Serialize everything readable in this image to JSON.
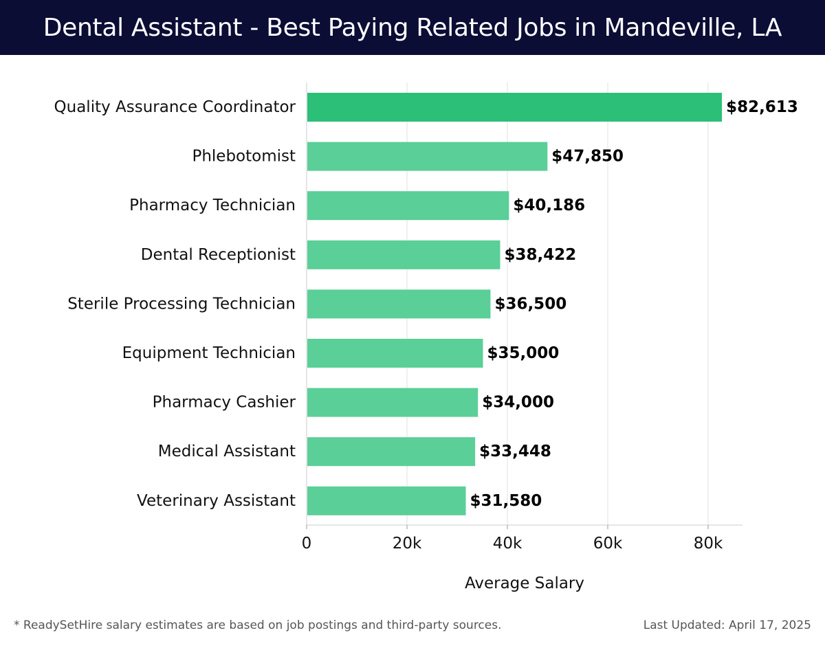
{
  "header": {
    "title": "Dental Assistant - Best Paying Related Jobs in Mandeville, LA"
  },
  "footer": {
    "note": "* ReadySetHire salary estimates are based on job postings and third-party sources.",
    "updated": "Last Updated: April 17, 2025"
  },
  "chart_data": {
    "type": "bar",
    "orientation": "horizontal",
    "title": "Dental Assistant - Best Paying Related Jobs in Mandeville, LA",
    "xlabel": "Average Salary",
    "ylabel": "",
    "xlim": [
      0,
      87000
    ],
    "xticks": [
      0,
      20000,
      40000,
      60000,
      80000
    ],
    "xtick_labels": [
      "0",
      "20k",
      "40k",
      "60k",
      "80k"
    ],
    "grid": true,
    "categories": [
      "Quality Assurance Coordinator",
      "Phlebotomist",
      "Pharmacy Technician",
      "Dental Receptionist",
      "Sterile Processing Technician",
      "Equipment Technician",
      "Pharmacy Cashier",
      "Medical Assistant",
      "Veterinary Assistant"
    ],
    "values": [
      82613,
      47850,
      40186,
      38422,
      36500,
      35000,
      34000,
      33448,
      31580
    ],
    "value_labels": [
      "$82,613",
      "$47,850",
      "$40,186",
      "$38,422",
      "$36,500",
      "$35,000",
      "$34,000",
      "$33,448",
      "$31,580"
    ],
    "colors": {
      "top_bar": "#2bbf78",
      "bar": "#5acf97",
      "grid": "#e2e2e2",
      "text": "#111111"
    }
  }
}
